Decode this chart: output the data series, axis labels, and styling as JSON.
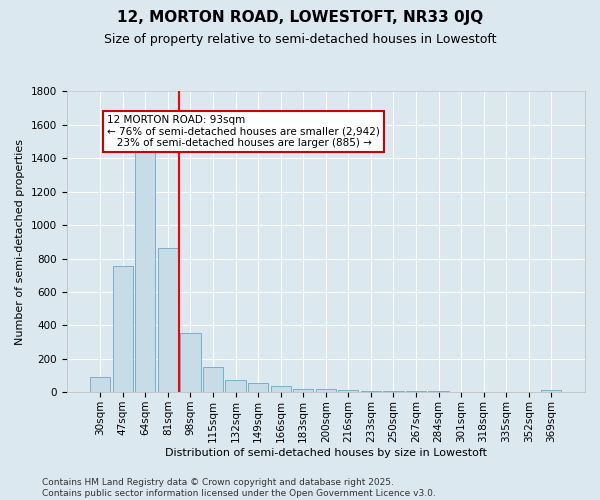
{
  "title": "12, MORTON ROAD, LOWESTOFT, NR33 0JQ",
  "subtitle": "Size of property relative to semi-detached houses in Lowestoft",
  "xlabel": "Distribution of semi-detached houses by size in Lowestoft",
  "ylabel": "Number of semi-detached properties",
  "categories": [
    "30sqm",
    "47sqm",
    "64sqm",
    "81sqm",
    "98sqm",
    "115sqm",
    "132sqm",
    "149sqm",
    "166sqm",
    "183sqm",
    "200sqm",
    "216sqm",
    "233sqm",
    "250sqm",
    "267sqm",
    "284sqm",
    "301sqm",
    "318sqm",
    "335sqm",
    "352sqm",
    "369sqm"
  ],
  "values": [
    90,
    755,
    1455,
    865,
    355,
    150,
    75,
    52,
    35,
    22,
    18,
    14,
    8,
    8,
    6,
    5,
    4,
    3,
    2,
    2,
    15
  ],
  "bar_color": "#c8dce8",
  "bar_edge_color": "#7aaec8",
  "background_color": "#dce8f0",
  "grid_color": "#ffffff",
  "red_line_index": 4,
  "annotation_line1": "12 MORTON ROAD: 93sqm",
  "annotation_line2": "← 76% of semi-detached houses are smaller (2,942)",
  "annotation_line3": "   23% of semi-detached houses are larger (885) →",
  "annotation_box_color": "#ffffff",
  "annotation_box_edge": "#cc0000",
  "ylim": [
    0,
    1800
  ],
  "yticks": [
    0,
    200,
    400,
    600,
    800,
    1000,
    1200,
    1400,
    1600,
    1800
  ],
  "footer_line1": "Contains HM Land Registry data © Crown copyright and database right 2025.",
  "footer_line2": "Contains public sector information licensed under the Open Government Licence v3.0.",
  "title_fontsize": 11,
  "subtitle_fontsize": 9,
  "axis_label_fontsize": 8,
  "tick_fontsize": 7.5,
  "annotation_fontsize": 7.5,
  "footer_fontsize": 6.5
}
